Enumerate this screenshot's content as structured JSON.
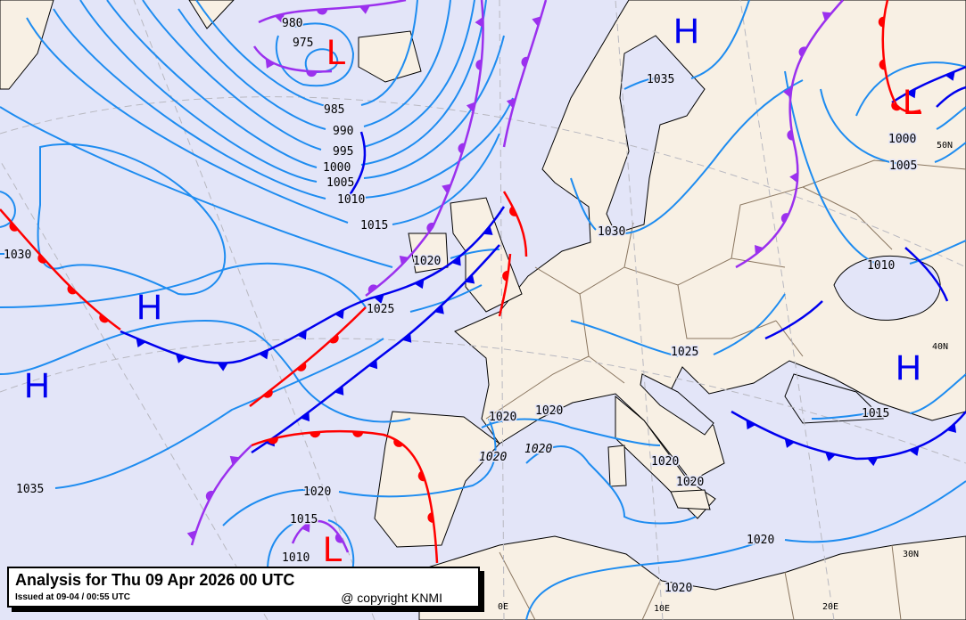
{
  "caption": {
    "title": "Analysis for Thu 09 Apr 2026 00 UTC",
    "issued": "Issued at 09-04 / 00:55 UTC",
    "copyright": "@ copyright KNMI"
  },
  "colors": {
    "sea": "#e3e5f8",
    "land": "#f8f0e4",
    "isobar": "#1e8cf0",
    "cold_front": "#0000ee",
    "warm_front": "#ff0000",
    "occluded_front": "#9b30ee",
    "high": "#0000ee",
    "low": "#ff0000"
  },
  "pressure_centers": [
    {
      "type": "H",
      "label": "H"
    },
    {
      "type": "H",
      "label": "H"
    },
    {
      "type": "H",
      "label": "H"
    },
    {
      "type": "H",
      "label": "H"
    },
    {
      "type": "L",
      "label": "L"
    },
    {
      "type": "L",
      "label": "L"
    },
    {
      "type": "L",
      "label": "L"
    }
  ],
  "isobar_labels": [
    "980",
    "975",
    "985",
    "990",
    "995",
    "1000",
    "1005",
    "1010",
    "1015",
    "1020",
    "1025",
    "1030",
    "1035",
    "1015",
    "1010",
    "1020",
    "1020",
    "1020",
    "1020",
    "1020",
    "1020",
    "1020",
    "1025",
    "1020",
    "1020",
    "1015",
    "1030",
    "1035",
    "1000",
    "1005",
    "1010"
  ],
  "grid_labels": [
    "0E",
    "10E",
    "20E",
    "30N",
    "40N",
    "50N"
  ],
  "fronts": [
    "cold",
    "warm",
    "occluded"
  ]
}
